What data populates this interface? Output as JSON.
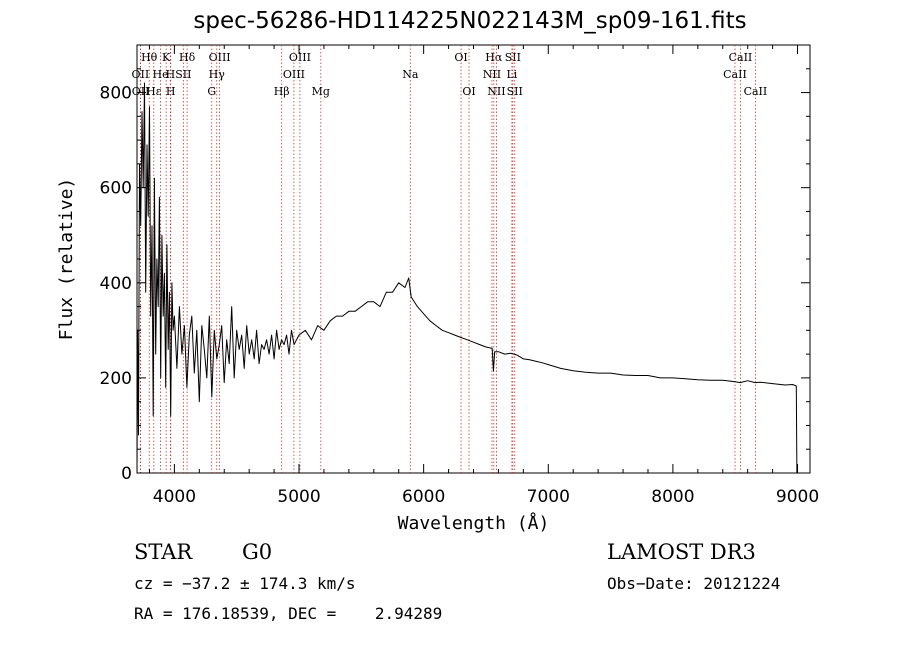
{
  "chart_data": {
    "type": "line",
    "title": "spec-56286-HD114225N022143M_sp09-161.fits",
    "xlabel": "Wavelength (Å)",
    "ylabel": "Flux (relative)",
    "xlim": [
      3700,
      9100
    ],
    "ylim": [
      0,
      900
    ],
    "xticks": [
      4000,
      5000,
      6000,
      7000,
      8000,
      9000
    ],
    "yticks": [
      0,
      200,
      400,
      600,
      800
    ],
    "series": [
      {
        "name": "spectrum",
        "x": [
          3700,
          3705,
          3712,
          3720,
          3730,
          3740,
          3750,
          3760,
          3770,
          3780,
          3790,
          3800,
          3810,
          3820,
          3830,
          3840,
          3850,
          3860,
          3870,
          3880,
          3890,
          3900,
          3910,
          3920,
          3930,
          3940,
          3950,
          3960,
          3970,
          3980,
          3990,
          4000,
          4020,
          4040,
          4060,
          4080,
          4100,
          4120,
          4140,
          4160,
          4180,
          4200,
          4220,
          4240,
          4260,
          4280,
          4300,
          4320,
          4340,
          4360,
          4380,
          4400,
          4420,
          4440,
          4460,
          4480,
          4500,
          4520,
          4540,
          4560,
          4580,
          4600,
          4620,
          4640,
          4660,
          4680,
          4700,
          4720,
          4740,
          4760,
          4780,
          4800,
          4820,
          4840,
          4860,
          4880,
          4900,
          4920,
          4940,
          4960,
          4980,
          5000,
          5050,
          5100,
          5150,
          5200,
          5250,
          5300,
          5350,
          5400,
          5450,
          5500,
          5550,
          5600,
          5650,
          5700,
          5750,
          5800,
          5850,
          5880,
          5900,
          5950,
          6000,
          6050,
          6100,
          6150,
          6200,
          6250,
          6300,
          6350,
          6400,
          6450,
          6500,
          6550,
          6560,
          6570,
          6600,
          6650,
          6700,
          6750,
          6800,
          6850,
          6900,
          6950,
          7000,
          7100,
          7200,
          7300,
          7400,
          7500,
          7600,
          7700,
          7800,
          7900,
          8000,
          8100,
          8200,
          8300,
          8400,
          8500,
          8540,
          8600,
          8660,
          8700,
          8800,
          8900,
          8960,
          8990,
          8995
        ],
        "values": [
          0,
          300,
          80,
          650,
          520,
          760,
          600,
          820,
          380,
          690,
          540,
          770,
          330,
          520,
          120,
          620,
          250,
          450,
          350,
          580,
          200,
          500,
          330,
          420,
          180,
          480,
          260,
          380,
          120,
          400,
          300,
          330,
          220,
          350,
          250,
          310,
          180,
          290,
          330,
          210,
          300,
          150,
          310,
          260,
          200,
          330,
          160,
          300,
          240,
          270,
          310,
          190,
          280,
          230,
          350,
          200,
          300,
          260,
          290,
          220,
          310,
          250,
          280,
          240,
          300,
          230,
          270,
          260,
          280,
          250,
          290,
          240,
          300,
          260,
          280,
          270,
          290,
          250,
          300,
          270,
          280,
          290,
          300,
          280,
          310,
          300,
          320,
          330,
          330,
          340,
          340,
          350,
          360,
          360,
          350,
          380,
          380,
          400,
          390,
          410,
          370,
          350,
          335,
          320,
          310,
          300,
          295,
          290,
          285,
          280,
          275,
          270,
          265,
          262,
          215,
          255,
          255,
          250,
          252,
          248,
          240,
          238,
          235,
          232,
          228,
          220,
          215,
          212,
          210,
          210,
          206,
          205,
          205,
          200,
          200,
          198,
          196,
          195,
          195,
          192,
          190,
          194,
          190,
          191,
          188,
          185,
          186,
          183,
          0
        ]
      }
    ],
    "line_markers": [
      {
        "label": "Hθ",
        "wavelength": 3798,
        "row": 1
      },
      {
        "label": "K",
        "wavelength": 3934,
        "row": 1
      },
      {
        "label": "Hδ",
        "wavelength": 4102,
        "row": 1
      },
      {
        "label": "OIII",
        "wavelength": 4363,
        "row": 1
      },
      {
        "label": "OIII",
        "wavelength": 5007,
        "row": 1
      },
      {
        "label": "OI",
        "wavelength": 6300,
        "row": 1
      },
      {
        "label": "Hα",
        "wavelength": 6563,
        "row": 1
      },
      {
        "label": "SII",
        "wavelength": 6716,
        "row": 1
      },
      {
        "label": "CaII",
        "wavelength": 8542,
        "row": 1
      },
      {
        "label": "OII",
        "wavelength": 3727,
        "row": 2
      },
      {
        "label": "He",
        "wavelength": 3889,
        "row": 2
      },
      {
        "label": "H",
        "wavelength": 3968,
        "row": 2
      },
      {
        "label": "SII",
        "wavelength": 4072,
        "row": 2
      },
      {
        "label": "Hγ",
        "wavelength": 4340,
        "row": 2
      },
      {
        "label": "OIII",
        "wavelength": 4959,
        "row": 2
      },
      {
        "label": "Na",
        "wavelength": 5893,
        "row": 2
      },
      {
        "label": "NII",
        "wavelength": 6548,
        "row": 2
      },
      {
        "label": "Li",
        "wavelength": 6708,
        "row": 2
      },
      {
        "label": "CaII",
        "wavelength": 8498,
        "row": 2
      },
      {
        "label": "OII",
        "wavelength": 3729,
        "row": 3
      },
      {
        "label": "Hε",
        "wavelength": 3835,
        "row": 3
      },
      {
        "label": "H",
        "wavelength": 3970,
        "row": 3
      },
      {
        "label": "G",
        "wavelength": 4300,
        "row": 3
      },
      {
        "label": "Hβ",
        "wavelength": 4861,
        "row": 3
      },
      {
        "label": "Mg",
        "wavelength": 5175,
        "row": 3
      },
      {
        "label": "OI",
        "wavelength": 6364,
        "row": 3
      },
      {
        "label": "NII",
        "wavelength": 6584,
        "row": 3
      },
      {
        "label": "SII",
        "wavelength": 6731,
        "row": 3
      },
      {
        "label": "CaII",
        "wavelength": 8662,
        "row": 3
      }
    ]
  },
  "info": {
    "object_type": "STAR",
    "subclass": "G0",
    "survey": "LAMOST DR3",
    "cz": "cz = −37.2 ± 174.3 km/s",
    "obs_date": "Obs−Date: 20121224",
    "coords": "RA = 176.18539, DEC =    2.94289"
  }
}
